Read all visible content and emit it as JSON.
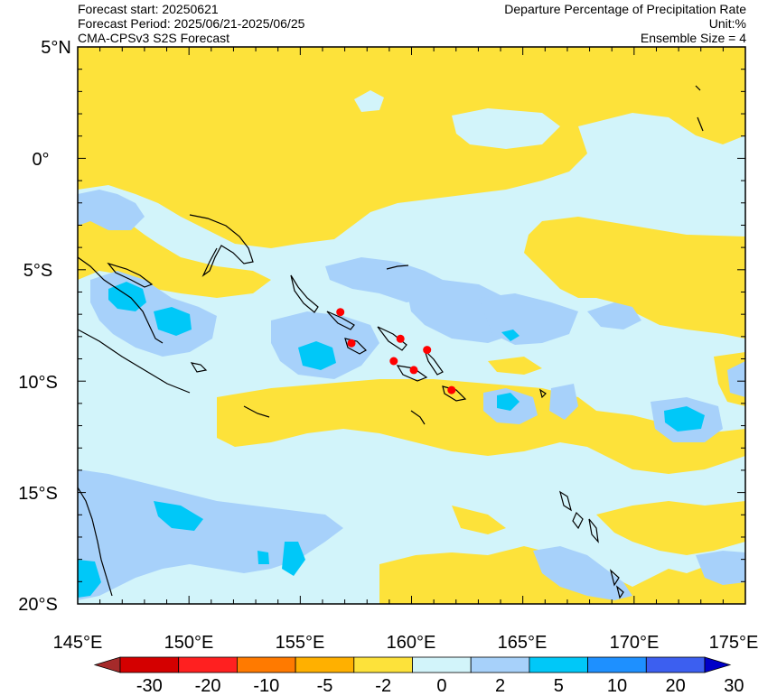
{
  "header": {
    "left": [
      "Forecast start: 20250621",
      "Forecast Period: 2025/06/21-2025/06/25",
      "CMA-CPSv3 S2S Forecast"
    ],
    "right": [
      "Departure Percentage of Precipitation Rate",
      "Unit:%",
      "Ensemble Size = 4"
    ]
  },
  "axes": {
    "lat_labels": [
      "5°N",
      "0°",
      "5°S",
      "10°S",
      "15°S",
      "20°S"
    ],
    "lon_labels": [
      "145°E",
      "150°E",
      "155°E",
      "160°E",
      "165°E",
      "170°E",
      "175°E"
    ],
    "lat_range": [
      -20,
      5
    ],
    "lon_range": [
      145,
      175
    ]
  },
  "colorbar": {
    "labels": [
      "-30",
      "-20",
      "-10",
      "-5",
      "-2",
      "0",
      "2",
      "5",
      "10",
      "20",
      "30"
    ],
    "colors": [
      "#a52a2a",
      "#d40000",
      "#ff2020",
      "#ff7a00",
      "#ffb000",
      "#fde23a",
      "#d2f4fa",
      "#a7d1fa",
      "#00c8f8",
      "#1e90ff",
      "#3c5ff0",
      "#0000c8"
    ]
  },
  "map": {
    "palette": {
      "dry": "#fde23a",
      "neutral": "#d2f4fa",
      "wet1": "#a7d1fa",
      "wet2": "#00c8f8"
    },
    "stations": [
      [
        156.8,
        -6.9
      ],
      [
        157.3,
        -8.3
      ],
      [
        159.5,
        -8.1
      ],
      [
        159.2,
        -9.1
      ],
      [
        160.1,
        -9.5
      ],
      [
        160.7,
        -8.6
      ],
      [
        161.8,
        -10.4
      ]
    ]
  }
}
